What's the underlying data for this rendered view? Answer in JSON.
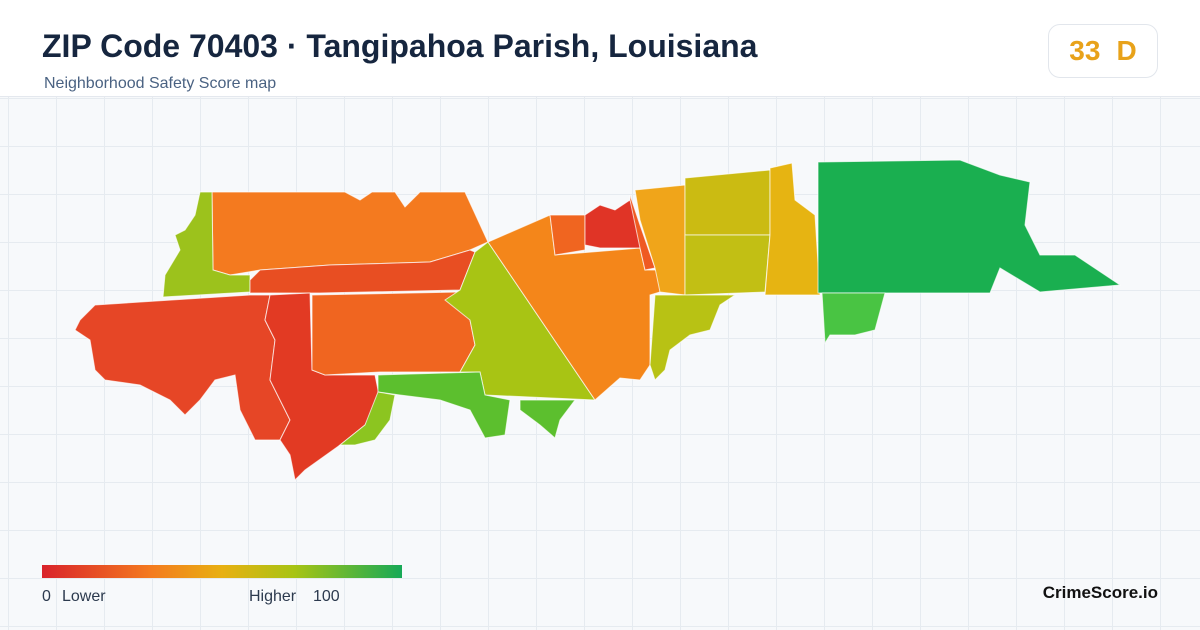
{
  "header": {
    "title": "ZIP Code 70403 · Tangipahoa Parish, Louisiana",
    "subtitle": "Neighborhood Safety Score map"
  },
  "score": {
    "value": 33,
    "grade": "D"
  },
  "legend": {
    "min": 0,
    "min_label": "Lower",
    "max_label": "Higher",
    "max": 100
  },
  "brand": "CrimeScore.io"
}
